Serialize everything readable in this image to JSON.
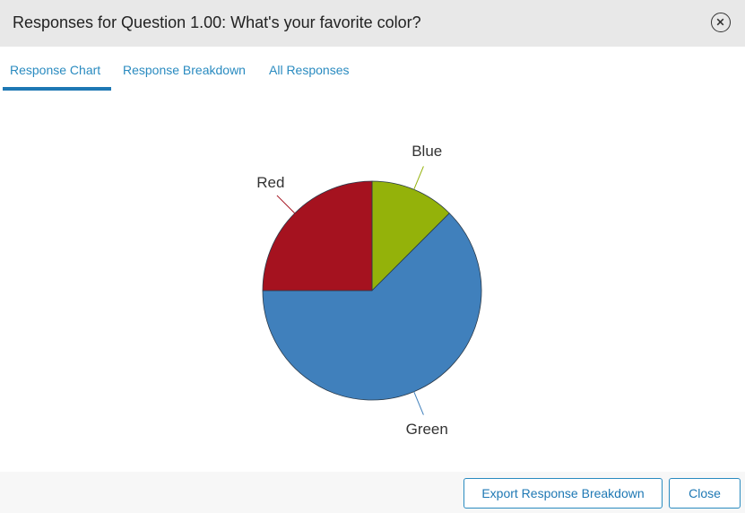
{
  "header": {
    "title": "Responses for Question 1.00: What's your favorite color?",
    "close_icon": "close-circle-icon"
  },
  "tabs": [
    {
      "label": "Response Chart",
      "active": true
    },
    {
      "label": "Response Breakdown",
      "active": false
    },
    {
      "label": "All Responses",
      "active": false
    }
  ],
  "chart_data": {
    "type": "pie",
    "slices": [
      {
        "label": "Blue",
        "value": 12.5,
        "color": "#94b20a"
      },
      {
        "label": "Green",
        "value": 62.5,
        "color": "#4080bc"
      },
      {
        "label": "Red",
        "value": 25,
        "color": "#a5121f"
      }
    ],
    "start_angle_deg": 0,
    "direction": "clockwise"
  },
  "footer": {
    "export_label": "Export Response Breakdown",
    "close_label": "Close"
  },
  "colors": {
    "accent": "#1e78b4",
    "header_bg": "#e8e8e8"
  }
}
